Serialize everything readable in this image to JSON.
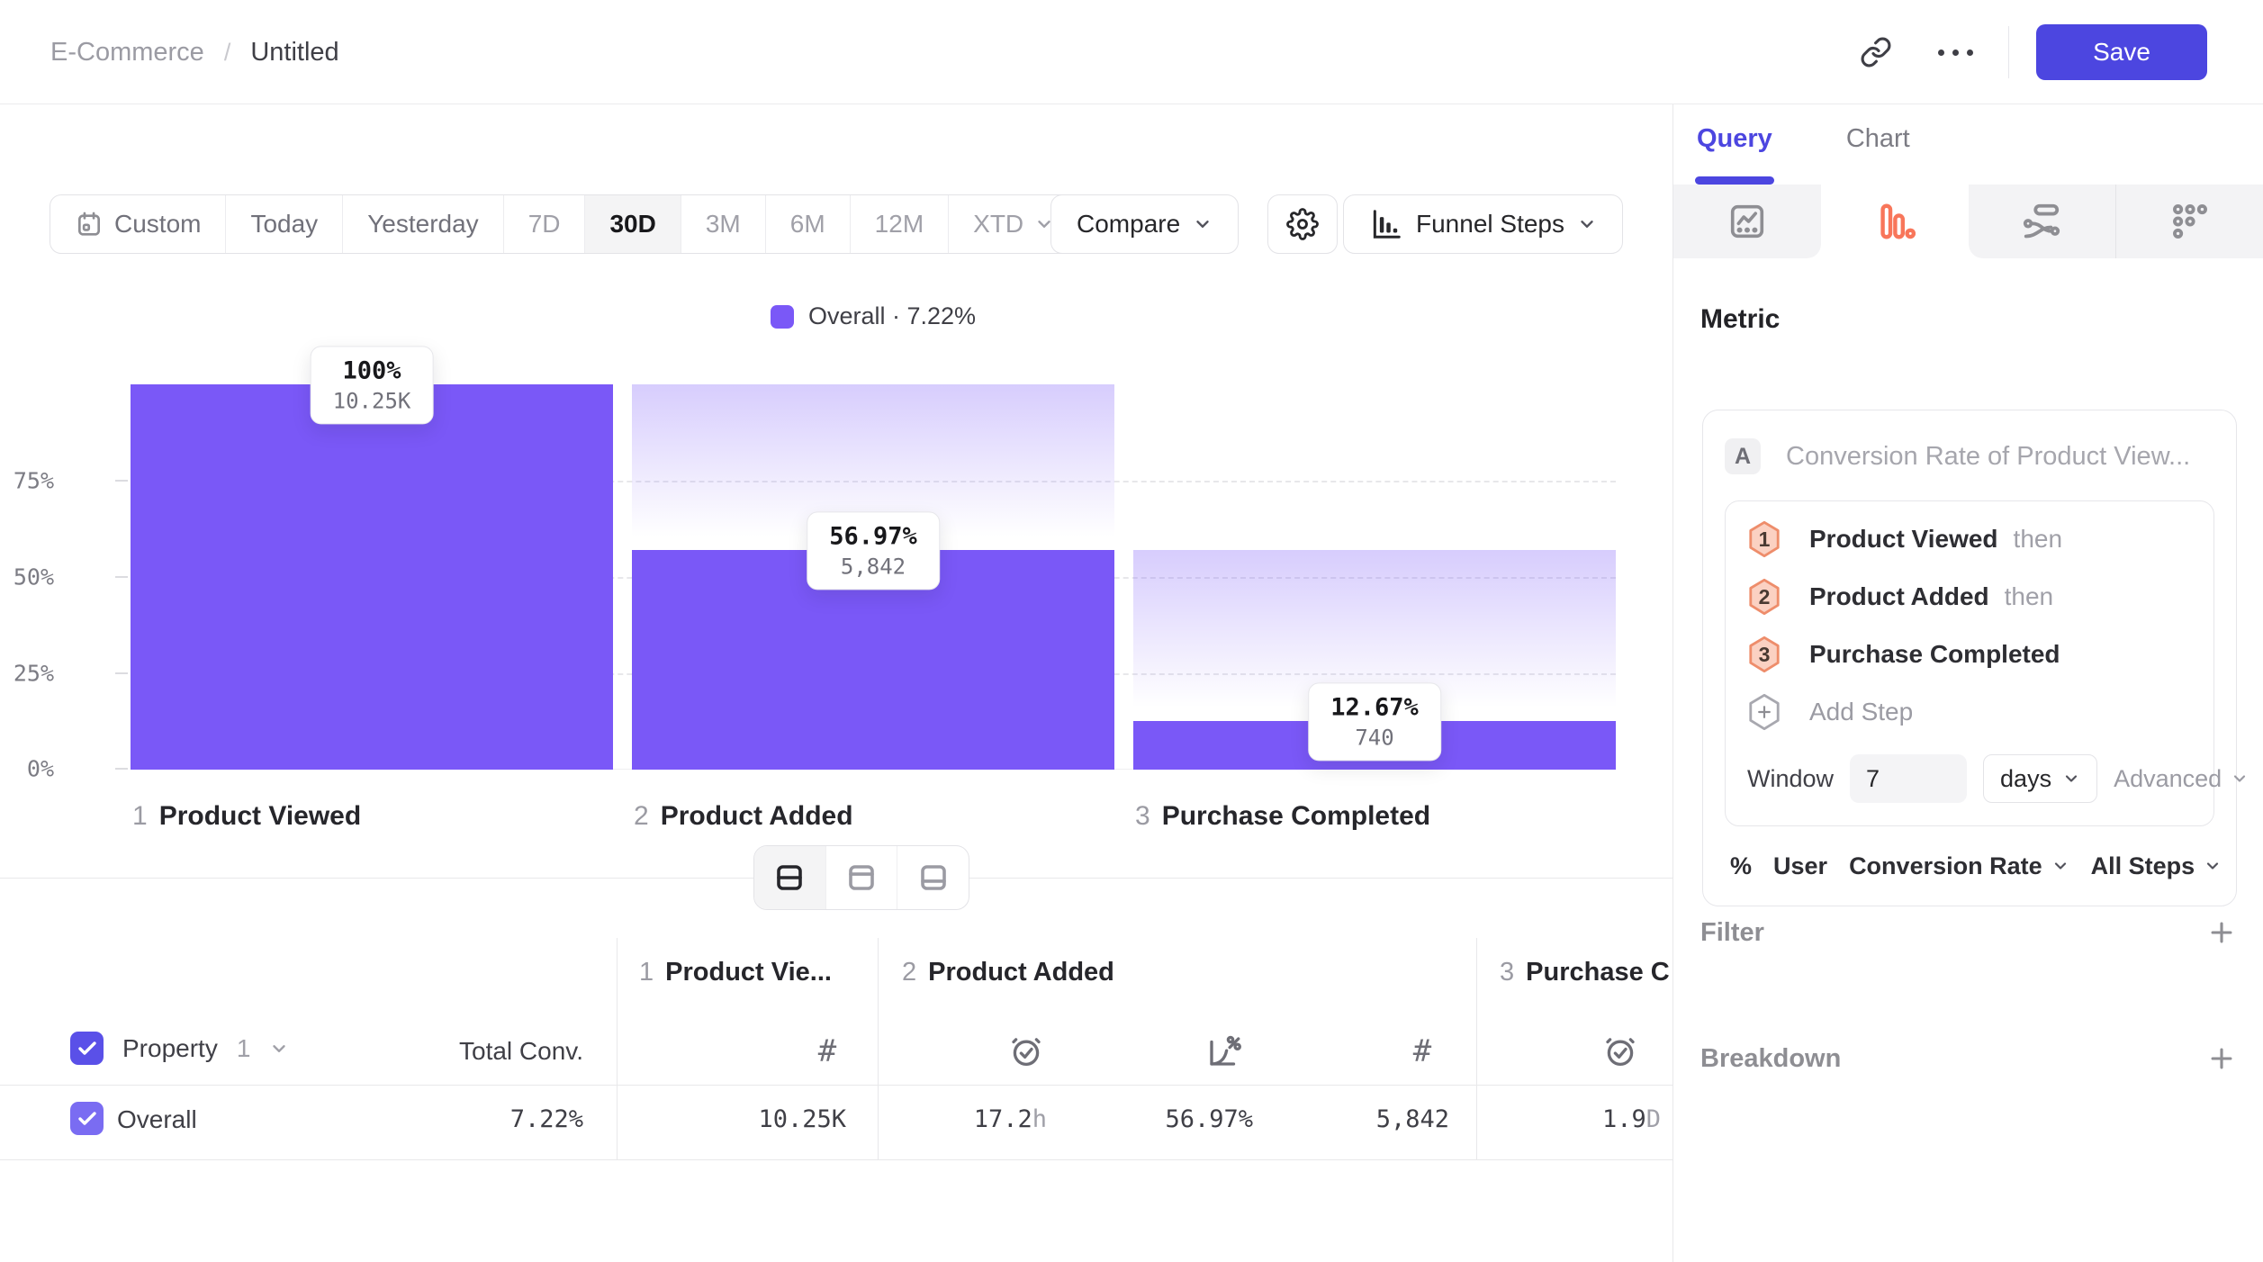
{
  "colors": {
    "bar_purple": "#7A58F7",
    "indigo_accent": "#4C46E0",
    "funnel_tab_orange": "#F8765A",
    "hexagon_fill": "#FBD1C2",
    "hexagon_stroke": "#EE8D6B"
  },
  "header": {
    "breadcrumb_project": "E-Commerce",
    "breadcrumb_sep": "/",
    "breadcrumb_title": "Untitled",
    "save_label": "Save"
  },
  "toolbar": {
    "ranges": [
      "Custom",
      "Today",
      "Yesterday",
      "7D",
      "30D",
      "3M",
      "6M",
      "12M",
      "XTD"
    ],
    "selected_range": "30D",
    "compare_label": "Compare",
    "view_label": "Funnel Steps"
  },
  "chart": {
    "legend": "Overall · 7.22%",
    "y_ticks": [
      "75%",
      "50%",
      "25%",
      "0%"
    ],
    "steps": [
      {
        "num": "1",
        "label": "Product Viewed",
        "pct": "100%",
        "count": "10.25K"
      },
      {
        "num": "2",
        "label": "Product Added",
        "pct": "56.97%",
        "count": "5,842"
      },
      {
        "num": "3",
        "label": "Purchase Completed",
        "pct": "12.67%",
        "count": "740"
      }
    ]
  },
  "chart_data": {
    "type": "funnel",
    "series": "Overall",
    "overall_conversion": "7.22%",
    "categories": [
      "Product Viewed",
      "Product Added",
      "Purchase Completed"
    ],
    "values": [
      100,
      56.97,
      12.67
    ],
    "counts": [
      10250,
      5842,
      740
    ],
    "count_labels": [
      "10.25K",
      "5,842",
      "740"
    ],
    "ylim": [
      0,
      100
    ],
    "y_ticks_pct": [
      0,
      25,
      50,
      75
    ],
    "grid": "dashed horizontal at 25/50/75",
    "legend_position": "top-center"
  },
  "table": {
    "property_label": "Property",
    "property_num": "1",
    "total_conv_label": "Total Conv.",
    "groups": [
      {
        "num": "1",
        "label": "Product Vie..."
      },
      {
        "num": "2",
        "label": "Product Added"
      },
      {
        "num": "3",
        "label": "Purchase C"
      }
    ],
    "row": {
      "label": "Overall",
      "total": "7.22%",
      "step1_count": "10.25K",
      "step2_time_v": "17.2",
      "step2_time_u": "h",
      "step2_pct": "56.97%",
      "step2_count": "5,842",
      "step3_time_v": "1.9",
      "step3_time_u": "D"
    }
  },
  "sidebar": {
    "tabs": {
      "query": "Query",
      "chart": "Chart"
    },
    "metric_label": "Metric",
    "series_badge": "A",
    "series_title": "Conversion Rate of Product View...",
    "steps": [
      {
        "num": "1",
        "label": "Product Viewed",
        "suffix": "then"
      },
      {
        "num": "2",
        "label": "Product Added",
        "suffix": "then"
      },
      {
        "num": "3",
        "label": "Purchase Completed",
        "suffix": ""
      }
    ],
    "add_step_label": "Add Step",
    "window": {
      "label": "Window",
      "value": "7",
      "unit": "days",
      "advanced": "Advanced"
    },
    "measure": {
      "symbol": "%",
      "user": "User",
      "metric": "Conversion Rate",
      "scope": "All Steps"
    },
    "filter_label": "Filter",
    "breakdown_label": "Breakdown"
  }
}
